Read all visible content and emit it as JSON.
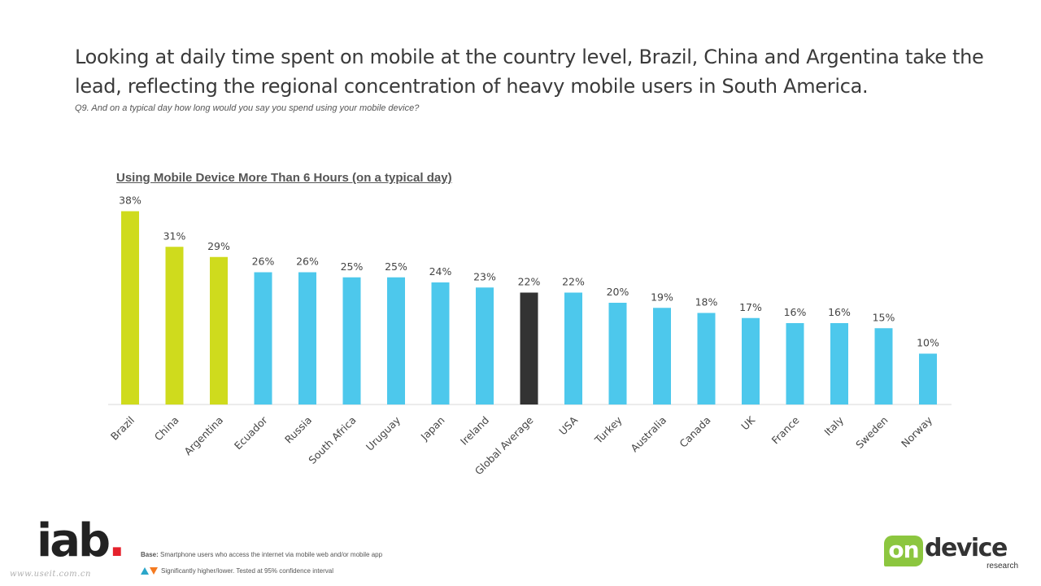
{
  "headline": "Looking at daily time spent on mobile at the country level, Brazil, China and Argentina take the lead, reflecting the regional concentration of heavy mobile users in South America.",
  "question": "Q9. And on a typical day how long would you say you spend using your mobile device?",
  "footer": {
    "base_label": "Base:",
    "base_text": " Smartphone users who access the internet via mobile web and/or mobile app",
    "significance_text": "Significantly higher/lower. Tested at 95% confidence interval",
    "watermark": "www.useit.com.cn",
    "logo_left": "iab",
    "logo_left_dot": ".",
    "logo_right_on": "on",
    "logo_right_device": "device",
    "logo_right_research": "research"
  },
  "colors": {
    "highlight": "#cfdb1d",
    "standard": "#4dc8ec",
    "average": "#333333",
    "axis": "#d9d9d9",
    "label": "#444444"
  },
  "chart_data": {
    "type": "bar",
    "title": "Using Mobile Device More Than 6 Hours (on a typical day)",
    "xlabel": "",
    "ylabel": "",
    "ylim": [
      0,
      40
    ],
    "value_suffix": "%",
    "grid": false,
    "categories": [
      "Brazil",
      "China",
      "Argentina",
      "Ecuador",
      "Russia",
      "South Africa",
      "Uruguay",
      "Japan",
      "Ireland",
      "Global Average",
      "USA",
      "Turkey",
      "Australia",
      "Canada",
      "UK",
      "France",
      "Italy",
      "Sweden",
      "Norway"
    ],
    "values": [
      38,
      31,
      29,
      26,
      26,
      25,
      25,
      24,
      23,
      22,
      22,
      20,
      19,
      18,
      17,
      16,
      16,
      15,
      10
    ],
    "bar_color_groups": [
      "highlight",
      "highlight",
      "highlight",
      "standard",
      "standard",
      "standard",
      "standard",
      "standard",
      "standard",
      "average",
      "standard",
      "standard",
      "standard",
      "standard",
      "standard",
      "standard",
      "standard",
      "standard",
      "standard"
    ]
  }
}
